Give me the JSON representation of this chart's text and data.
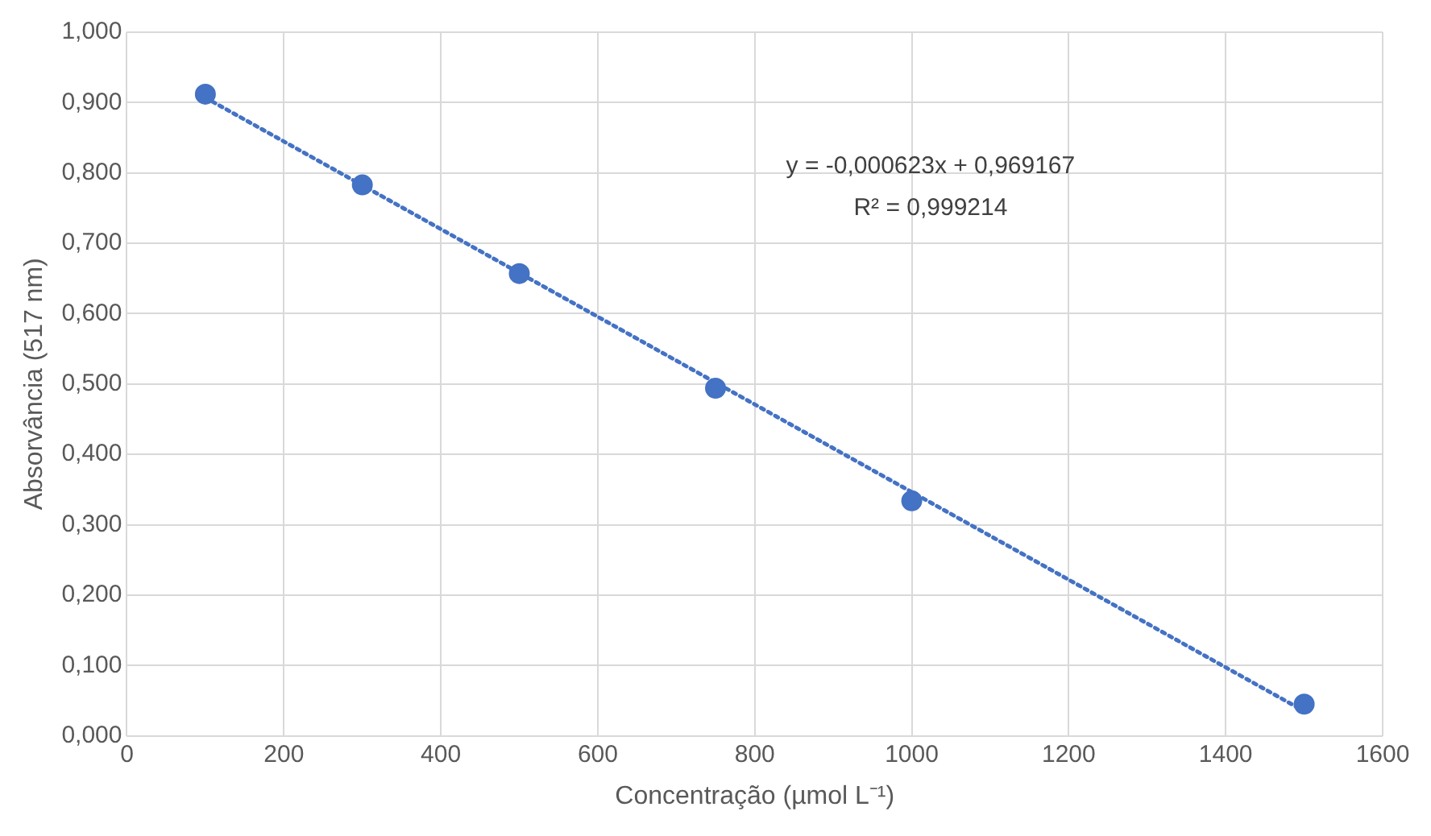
{
  "chart_data": {
    "type": "scatter",
    "xlabel": "Concentração (µmol L⁻¹)",
    "ylabel": "Absorvância (517 nm)",
    "annotations": [
      "y = -0,000623x + 0,969167",
      "R² = 0,999214"
    ],
    "xlim": [
      0,
      1600
    ],
    "xticks": [
      0,
      200,
      400,
      600,
      800,
      1000,
      1200,
      1400,
      1600
    ],
    "ylim": [
      0,
      1
    ],
    "yticks": [
      {
        "value": 0,
        "label": "0,000"
      },
      {
        "value": 0.1,
        "label": "0,100"
      },
      {
        "value": 0.2,
        "label": "0,200"
      },
      {
        "value": 0.3,
        "label": "0,300"
      },
      {
        "value": 0.4,
        "label": "0,400"
      },
      {
        "value": 0.5,
        "label": "0,500"
      },
      {
        "value": 0.6,
        "label": "0,600"
      },
      {
        "value": 0.7,
        "label": "0,700"
      },
      {
        "value": 0.8,
        "label": "0,800"
      },
      {
        "value": 0.9,
        "label": "0,900"
      },
      {
        "value": 1,
        "label": "1,000"
      }
    ],
    "grid": true,
    "legend": false,
    "series": [
      {
        "type": "scatter",
        "color": "#4472c4",
        "marker": "circle",
        "x": [
          100,
          300,
          500,
          750,
          1000,
          1500
        ],
        "values": [
          0.912,
          0.783,
          0.657,
          0.494,
          0.334,
          0.045
        ]
      },
      {
        "type": "line",
        "color": "#4472c4",
        "marker": "none",
        "line_style": "dotted",
        "x": [
          100,
          1500
        ],
        "values": [
          0.907,
          0.035
        ]
      }
    ]
  }
}
